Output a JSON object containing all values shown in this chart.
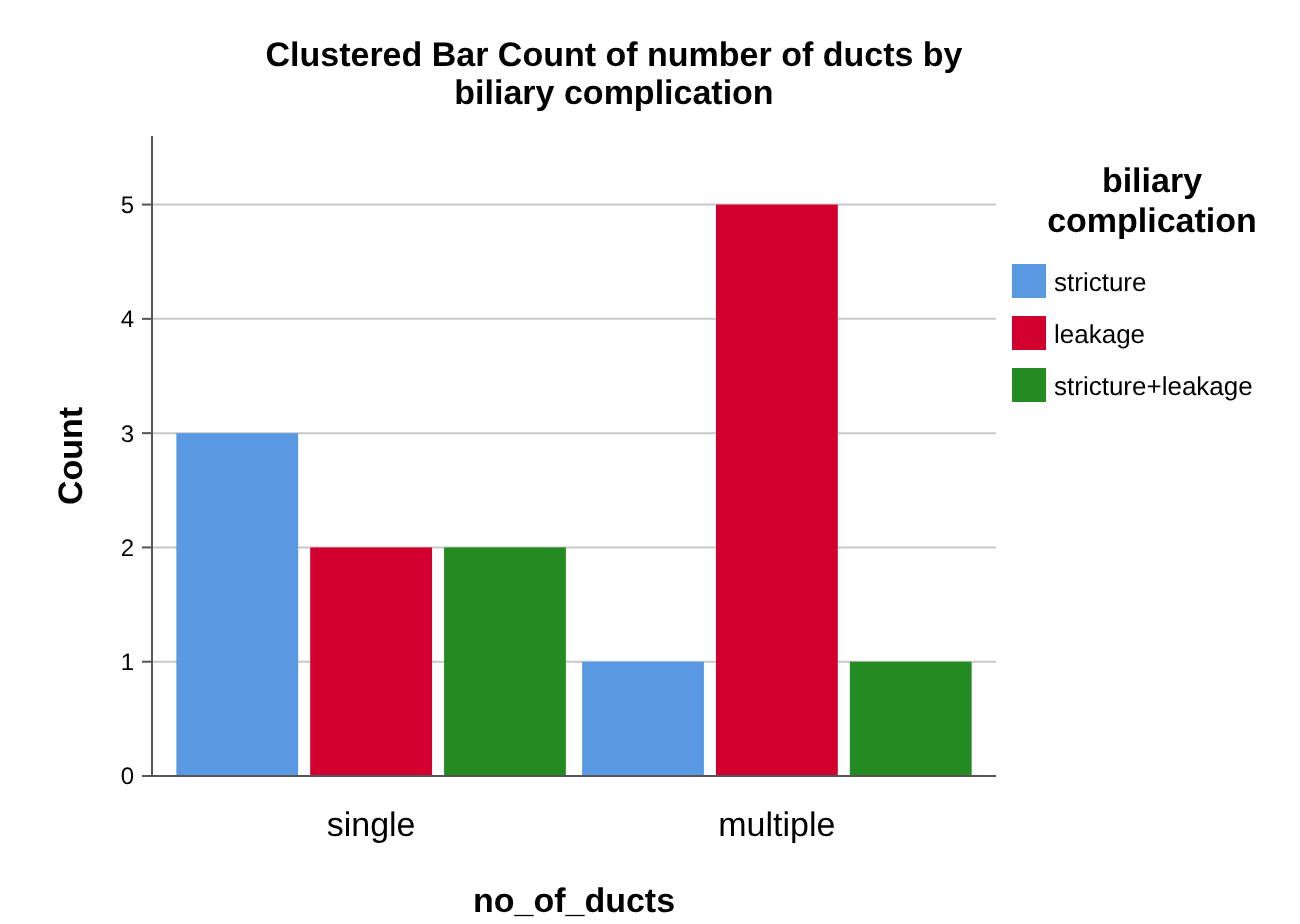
{
  "chart_data": {
    "type": "bar",
    "title": "Clustered Bar Count of number of ducts by biliary complication",
    "xlabel": "no_of_ducts",
    "ylabel": "Count",
    "legend_title": "biliary complication",
    "categories": [
      "single",
      "multiple"
    ],
    "series": [
      {
        "name": "stricture",
        "color": "#5899e2",
        "values": [
          3,
          1
        ]
      },
      {
        "name": "leakage",
        "color": "#d2002e",
        "values": [
          2,
          5
        ]
      },
      {
        "name": "stricture+leakage",
        "color": "#248a22",
        "values": [
          2,
          1
        ]
      }
    ],
    "ylim": [
      0,
      5.6
    ],
    "yticks": [
      0,
      1,
      2,
      3,
      4,
      5
    ],
    "grid": "y",
    "legend": "right"
  }
}
